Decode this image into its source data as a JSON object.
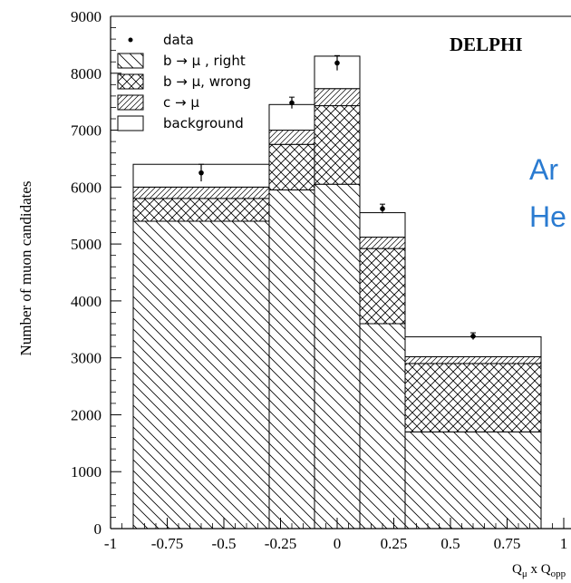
{
  "chart_data": {
    "type": "bar",
    "title": "DELPHI",
    "ylabel": "Number of muon candidates",
    "xlabel": "Q",
    "xlabel_sub1": "μ",
    "xlabel_mid": " x Q",
    "xlabel_sub2": "opp",
    "xlim": [
      -1,
      1
    ],
    "ylim": [
      0,
      9000
    ],
    "x_ticks": [
      "-1",
      "-0.75",
      "-0.5",
      "-0.25",
      "0",
      "0.25",
      "0.5",
      "0.75",
      "1"
    ],
    "x_tick_values": [
      -1,
      -0.75,
      -0.5,
      -0.25,
      0,
      0.25,
      0.5,
      0.75,
      1
    ],
    "y_ticks": [
      "0",
      "1000",
      "2000",
      "3000",
      "4000",
      "5000",
      "6000",
      "7000",
      "8000",
      "9000"
    ],
    "y_tick_values": [
      0,
      1000,
      2000,
      3000,
      4000,
      5000,
      6000,
      7000,
      8000,
      9000
    ],
    "bins": [
      [
        -0.9,
        -0.3
      ],
      [
        -0.3,
        -0.1
      ],
      [
        -0.1,
        0.1
      ],
      [
        0.1,
        0.3
      ],
      [
        0.3,
        0.9
      ]
    ],
    "series": [
      {
        "name": "b → μ , right",
        "values": [
          5400,
          5950,
          6050,
          3600,
          1700
        ]
      },
      {
        "name": "b → μ, wrong",
        "values": [
          400,
          800,
          1380,
          1320,
          1200
        ]
      },
      {
        "name": "c → μ",
        "values": [
          200,
          250,
          300,
          200,
          120
        ]
      },
      {
        "name": "background",
        "values": [
          400,
          450,
          570,
          430,
          350
        ]
      }
    ],
    "data_points": {
      "name": "data",
      "x": [
        -0.6,
        -0.2,
        0,
        0.2,
        0.6
      ],
      "y": [
        6250,
        7480,
        8180,
        5620,
        3380
      ],
      "err": [
        150,
        100,
        130,
        80,
        60
      ]
    },
    "legend": [
      "data",
      "b → μ , right",
      "b → μ, wrong",
      "c → μ",
      "background"
    ],
    "legend_position": "top-left"
  },
  "overlay_text": [
    "Ar",
    "He"
  ]
}
